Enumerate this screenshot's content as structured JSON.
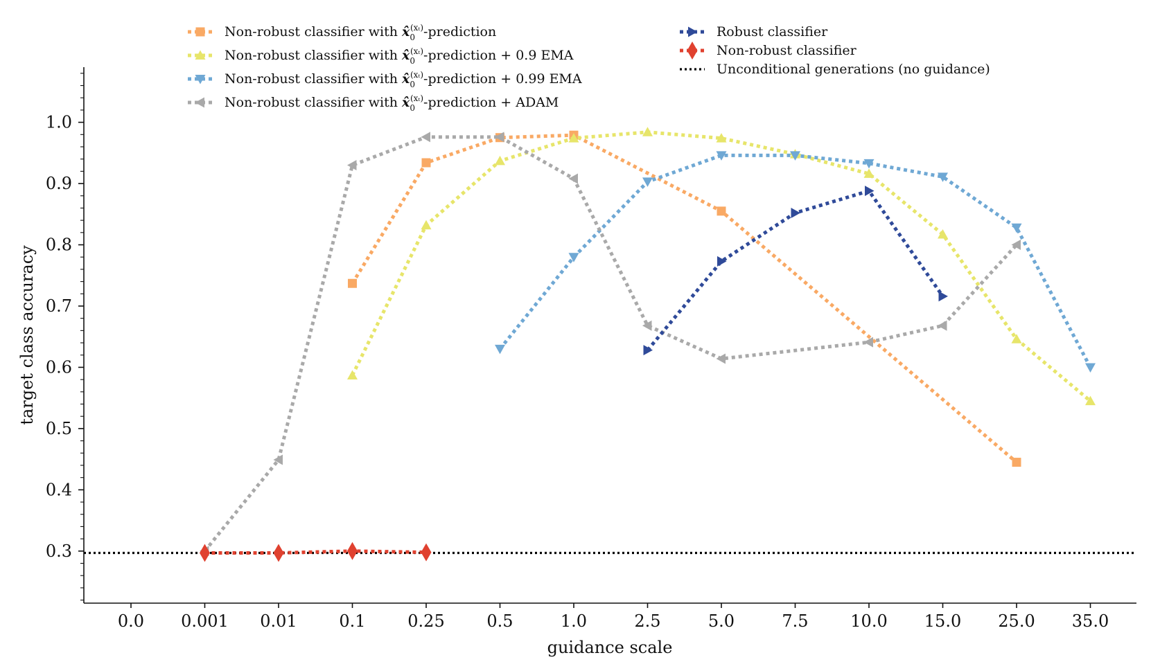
{
  "chart_data": {
    "type": "line",
    "xlabel": "guidance scale",
    "ylabel": "target class accuracy",
    "categories": [
      "0.0",
      "0.001",
      "0.01",
      "0.1",
      "0.25",
      "0.5",
      "1.0",
      "2.5",
      "5.0",
      "7.5",
      "10.0",
      "15.0",
      "25.0",
      "35.0"
    ],
    "ylim": [
      0.215,
      1.09
    ],
    "yticks": [
      "0.3",
      "0.4",
      "0.5",
      "0.6",
      "0.7",
      "0.8",
      "0.9",
      "1.0"
    ],
    "grid": false,
    "legend_position": "top",
    "series": [
      {
        "name": "Non-robust classifier with x̂₀(xₜ)-prediction",
        "legend_prefix": "Non-robust classifier with ",
        "legend_suffix": "-prediction",
        "color": "#f9a964",
        "marker": "square",
        "x": [
          "0.1",
          "0.25",
          "0.5",
          "1.0",
          "5.0",
          "25.0"
        ],
        "values": [
          0.737,
          0.934,
          0.975,
          0.979,
          0.855,
          0.445
        ]
      },
      {
        "name": "Non-robust classifier with x̂₀(xₜ)-prediction + 0.9 EMA",
        "legend_prefix": "Non-robust classifier with ",
        "legend_suffix": "-prediction + 0.9 EMA",
        "color": "#e7e56a",
        "marker": "triangle-up",
        "x": [
          "0.1",
          "0.25",
          "0.5",
          "1.0",
          "2.5",
          "5.0",
          "7.5",
          "10.0",
          "15.0",
          "25.0",
          "35.0"
        ],
        "values": [
          0.587,
          0.832,
          0.937,
          0.974,
          0.984,
          0.974,
          0.948,
          0.916,
          0.817,
          0.646,
          0.545
        ]
      },
      {
        "name": "Non-robust classifier with x̂₀(xₜ)-prediction + 0.99 EMA",
        "legend_prefix": "Non-robust classifier with ",
        "legend_suffix": "-prediction + 0.99 EMA",
        "color": "#6fa8d4",
        "marker": "triangle-down",
        "x": [
          "0.5",
          "1.0",
          "2.5",
          "5.0",
          "7.5",
          "10.0",
          "15.0",
          "25.0",
          "35.0"
        ],
        "values": [
          0.63,
          0.78,
          0.903,
          0.946,
          0.946,
          0.933,
          0.911,
          0.828,
          0.6
        ]
      },
      {
        "name": "Non-robust classifier with x̂₀(xₜ)-prediction + ADAM",
        "legend_prefix": "Non-robust classifier with ",
        "legend_suffix": "-prediction + ADAM",
        "color": "#a9a9a9",
        "marker": "triangle-left",
        "x": [
          "0.001",
          "0.01",
          "0.1",
          "0.25",
          "0.5",
          "1.0",
          "2.5",
          "5.0",
          "10.0",
          "15.0",
          "25.0"
        ],
        "values": [
          0.3,
          0.449,
          0.93,
          0.976,
          0.976,
          0.908,
          0.668,
          0.614,
          0.641,
          0.668,
          0.8
        ]
      },
      {
        "name": "Robust classifier",
        "color": "#2f4a99",
        "marker": "triangle-right",
        "x": [
          "2.5",
          "5.0",
          "7.5",
          "10.0",
          "15.0"
        ],
        "values": [
          0.628,
          0.773,
          0.852,
          0.888,
          0.716
        ]
      },
      {
        "name": "Non-robust classifier",
        "color": "#e0412f",
        "marker": "diamond",
        "x": [
          "0.001",
          "0.01",
          "0.1",
          "0.25"
        ],
        "values": [
          0.297,
          0.297,
          0.3,
          0.298
        ]
      }
    ],
    "reference_line": {
      "name": "Unconditional generations (no guidance)",
      "color": "#000000",
      "y": 0.297
    }
  }
}
